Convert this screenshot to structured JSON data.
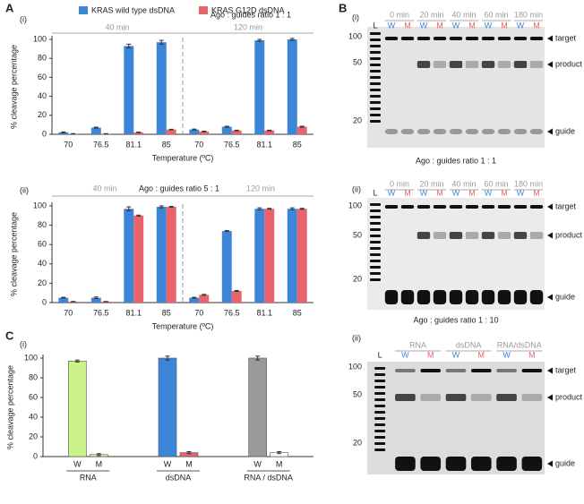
{
  "chart_data": [
    {
      "type": "bar",
      "panel": "A",
      "label": "(i)",
      "ylabel": "% cleavage percentage",
      "xlabel": "Temperature (ºC)",
      "annotation": "Ago : guides ratio  1 : 1",
      "groups": [
        "40 min",
        "120 min"
      ],
      "categories": [
        "70",
        "76.5",
        "81.1",
        "85",
        "70",
        "76.5",
        "81.1",
        "85"
      ],
      "series": [
        {
          "name": "KRAS wild type dsDNA",
          "color": "#3d85d8",
          "values": [
            2,
            7,
            93,
            97,
            5,
            8,
            99,
            100
          ],
          "errors": [
            0.5,
            0.5,
            2,
            2,
            0.5,
            0.5,
            1,
            1
          ]
        },
        {
          "name": "KRAS G12D dsDNA",
          "color": "#e8636a",
          "values": [
            0.5,
            0.5,
            2,
            5,
            3,
            4,
            4,
            8
          ],
          "errors": [
            0.2,
            0.2,
            0.3,
            0.3,
            0.3,
            0.3,
            0.3,
            0.5
          ]
        }
      ],
      "ylim": [
        0,
        100
      ],
      "yticks": [
        0,
        20,
        40,
        60,
        80,
        100
      ]
    },
    {
      "type": "bar",
      "label": "(ii)",
      "ylabel": "% cleavage percentage",
      "xlabel": "Temperature (ºC)",
      "annotation": "Ago : guides ratio  5 : 1",
      "groups": [
        "40 min",
        "120 min"
      ],
      "categories": [
        "70",
        "76.5",
        "81.1",
        "85",
        "70",
        "76.5",
        "81.1",
        "85"
      ],
      "series": [
        {
          "color": "#3d85d8",
          "values": [
            5,
            5,
            97,
            99,
            5,
            74,
            97,
            97
          ],
          "errors": [
            0.5,
            0.8,
            2,
            1,
            0.5,
            0.5,
            1,
            1
          ]
        },
        {
          "color": "#e8636a",
          "values": [
            1,
            1,
            90,
            99,
            8,
            12,
            97,
            97
          ],
          "errors": [
            0.2,
            0.2,
            0.5,
            0.5,
            0.5,
            0.5,
            0.5,
            0.5
          ]
        }
      ],
      "ylim": [
        0,
        100
      ],
      "yticks": [
        0,
        20,
        40,
        60,
        80,
        100
      ]
    },
    {
      "type": "bar",
      "panel": "C",
      "label": "(i)",
      "ylabel": "% cleavage percentage",
      "groups": [
        "RNA",
        "dsDNA",
        "RNA / dsDNA"
      ],
      "categories": [
        "W",
        "M",
        "W",
        "M",
        "W",
        "M"
      ],
      "values": [
        97,
        2,
        100,
        4,
        100,
        4
      ],
      "errors": [
        1,
        1,
        2,
        1,
        2,
        1
      ],
      "colors": [
        "#ccf28a",
        "#f3e6b3",
        "#3d85d8",
        "#e8636a",
        "#9a9a9a",
        "#ffffff"
      ],
      "ylim": [
        0,
        100
      ],
      "yticks": [
        0,
        20,
        40,
        60,
        80,
        100
      ]
    }
  ],
  "gels": [
    {
      "panel": "B",
      "label": "(i)",
      "groups": [
        "0 min",
        "20 min",
        "40 min",
        "60 min",
        "180 min"
      ],
      "lanes": [
        "L",
        "W",
        "M",
        "W",
        "M",
        "W",
        "M",
        "W",
        "M",
        "W",
        "M"
      ],
      "markers": [
        100,
        50,
        20
      ],
      "bands": [
        "target",
        "product",
        "guide"
      ],
      "caption": "Ago : guides ratio  1 : 1"
    },
    {
      "label": "(ii)",
      "groups": [
        "0 min",
        "20 min",
        "40 min",
        "60 min",
        "180 min"
      ],
      "lanes": [
        "L",
        "W",
        "M",
        "W",
        "M",
        "W",
        "M",
        "W",
        "M",
        "W",
        "M"
      ],
      "markers": [
        100,
        50,
        20
      ],
      "bands": [
        "target",
        "product",
        "guide"
      ],
      "caption": "Ago : guides ratio  1 : 10"
    },
    {
      "label": "(ii)",
      "groups": [
        "RNA",
        "dsDNA",
        "RNA/dsDNA"
      ],
      "lanes": [
        "L",
        "W",
        "M",
        "W",
        "M",
        "W",
        "M"
      ],
      "markers": [
        100,
        50,
        20
      ],
      "bands": [
        "target",
        "product",
        "guide"
      ]
    }
  ]
}
